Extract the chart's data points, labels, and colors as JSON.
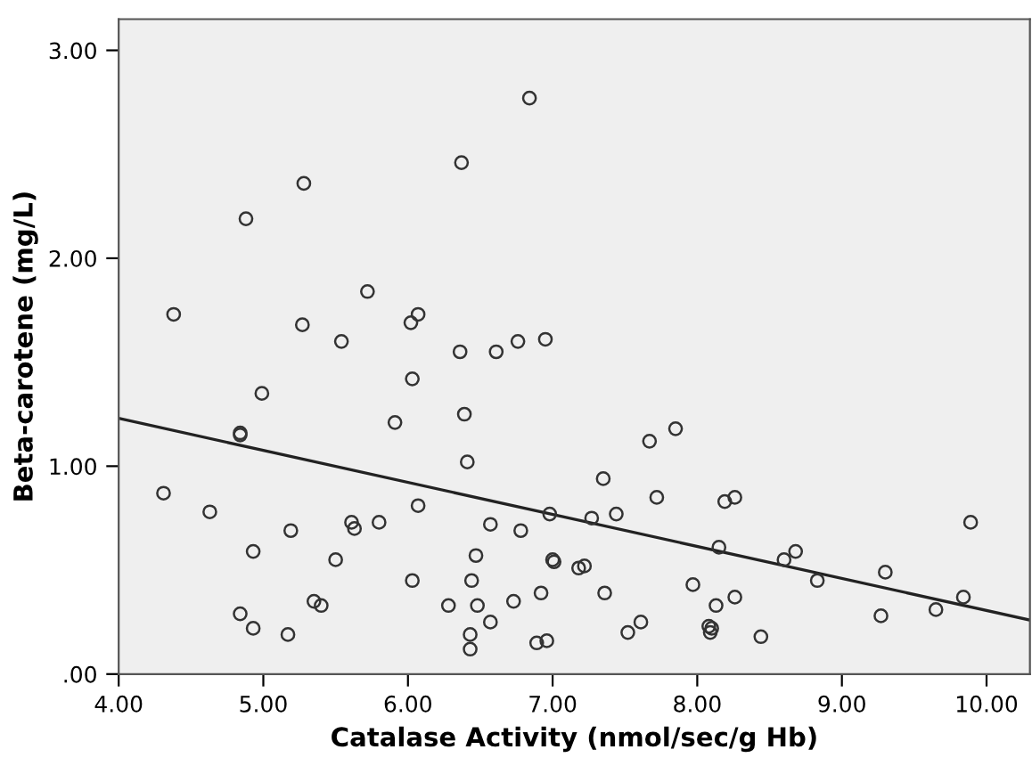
{
  "chart_data": {
    "type": "scatter",
    "xlabel": "Catalase Activity (nmol/sec/g Hb)",
    "ylabel": "Beta-carotene (mg/L)",
    "xlim": [
      4.0,
      10.3
    ],
    "ylim": [
      0,
      3.15
    ],
    "xticks": [
      {
        "value": 4,
        "label": "4.00"
      },
      {
        "value": 5,
        "label": "5.00"
      },
      {
        "value": 6,
        "label": "6.00"
      },
      {
        "value": 7,
        "label": "7.00"
      },
      {
        "value": 8,
        "label": "8.00"
      },
      {
        "value": 9,
        "label": "9.00"
      },
      {
        "value": 10,
        "label": "10.00"
      }
    ],
    "yticks": [
      {
        "value": 0,
        "label": ".00"
      },
      {
        "value": 1,
        "label": "1.00"
      },
      {
        "value": 2,
        "label": "2.00"
      },
      {
        "value": 3,
        "label": "3.00"
      }
    ],
    "grid": false,
    "marker": "circle",
    "series": [
      {
        "color": "#333333",
        "x": [
          4.38,
          4.88,
          5.28,
          5.72,
          5.27,
          5.54,
          6.02,
          6.07,
          6.37,
          6.84,
          6.36,
          6.61,
          6.76,
          6.95,
          6.03,
          4.99,
          4.84,
          4.84,
          5.91,
          6.39,
          6.41,
          4.31,
          4.63,
          6.07,
          6.98,
          5.19,
          5.61,
          5.63,
          5.8,
          6.57,
          6.78,
          4.93,
          5.5,
          6.47,
          7.0,
          7.01,
          6.03,
          6.44,
          6.92,
          5.35,
          5.4,
          6.28,
          6.48,
          6.73,
          4.84,
          4.93,
          5.17,
          6.57,
          6.43,
          6.43,
          6.89,
          6.96,
          7.85,
          7.67,
          7.35,
          7.72,
          8.19,
          8.26,
          7.27,
          7.44,
          9.89,
          8.15,
          8.68,
          8.6,
          7.18,
          7.22,
          8.83,
          9.3,
          7.97,
          7.36,
          8.26,
          9.84,
          8.13,
          9.65,
          9.27,
          7.61,
          7.52,
          8.08,
          8.1,
          8.09,
          8.44
        ],
        "values": [
          1.73,
          2.19,
          2.36,
          1.84,
          1.68,
          1.6,
          1.69,
          1.73,
          2.46,
          2.77,
          1.55,
          1.55,
          1.6,
          1.61,
          1.42,
          1.35,
          1.16,
          1.15,
          1.21,
          1.25,
          1.02,
          0.87,
          0.78,
          0.81,
          0.77,
          0.69,
          0.73,
          0.7,
          0.73,
          0.72,
          0.69,
          0.59,
          0.55,
          0.57,
          0.55,
          0.54,
          0.45,
          0.45,
          0.39,
          0.35,
          0.33,
          0.33,
          0.33,
          0.35,
          0.29,
          0.22,
          0.19,
          0.25,
          0.19,
          0.12,
          0.15,
          0.16,
          1.18,
          1.12,
          0.94,
          0.85,
          0.83,
          0.85,
          0.75,
          0.77,
          0.73,
          0.61,
          0.59,
          0.55,
          0.51,
          0.52,
          0.45,
          0.49,
          0.43,
          0.39,
          0.37,
          0.37,
          0.33,
          0.31,
          0.28,
          0.25,
          0.2,
          0.23,
          0.22,
          0.2,
          0.18
        ]
      },
      {
        "type": "line",
        "color": "#222222",
        "marker": "none",
        "x": [
          4.0,
          10.3
        ],
        "values": [
          1.23,
          0.26
        ]
      }
    ]
  }
}
